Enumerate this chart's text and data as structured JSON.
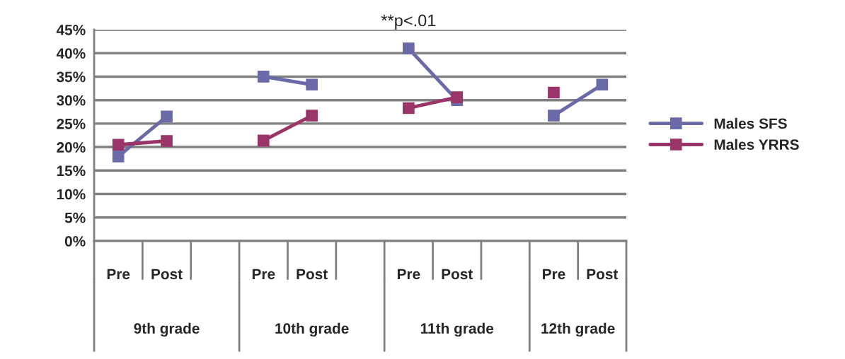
{
  "chart_data": {
    "type": "line",
    "categories": [
      "Pre",
      "Post",
      null,
      "Pre",
      "Post",
      null,
      "Pre",
      "Post",
      null,
      "Pre",
      "Post"
    ],
    "series": [
      {
        "name": "Males SFS",
        "color": "#6a6aa8",
        "values": [
          18,
          26.5,
          null,
          35,
          33.3,
          null,
          41,
          30,
          null,
          26.7,
          33.3
        ]
      },
      {
        "name": "Males YRRS",
        "color": "#9b3468",
        "values": [
          20.5,
          21.3,
          null,
          21.4,
          26.7,
          null,
          28.3,
          30.6,
          null,
          31.6,
          null
        ]
      }
    ],
    "ylim": [
      0,
      45
    ],
    "yticks": [
      {
        "value": 0,
        "label": "0%"
      },
      {
        "value": 5,
        "label": "5%"
      },
      {
        "value": 10,
        "label": "10%"
      },
      {
        "value": 15,
        "label": "15%"
      },
      {
        "value": 20,
        "label": "20%"
      },
      {
        "value": 25,
        "label": "25%"
      },
      {
        "value": 30,
        "label": "30%"
      },
      {
        "value": 35,
        "label": "35%"
      },
      {
        "value": 40,
        "label": "40%"
      },
      {
        "value": 45,
        "label": "45%"
      }
    ],
    "grid": "y",
    "legend": "right",
    "marker": "square",
    "line_style": "solid",
    "annotations": [
      "**p<.01",
      "9th grade",
      "10th grade",
      "11th grade",
      "12th grade"
    ]
  }
}
